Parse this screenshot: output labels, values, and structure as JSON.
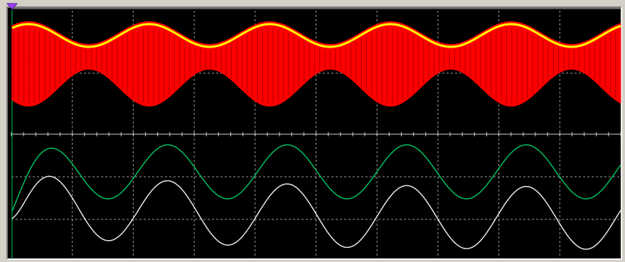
{
  "window": {
    "background": "#d4d0c8",
    "screen_background": "#000000"
  },
  "trigger_marker": {
    "icon": "trigger-marker-icon",
    "color": "#a040ff"
  },
  "chart_data": {
    "type": "line",
    "grid": true,
    "grid_style": "dashed",
    "grid_color": "#9a9a9a",
    "panels": [
      {
        "position": "top",
        "series": [
          {
            "color": "#ff0000",
            "style": "high-frequency carrier, amplitude-modulated",
            "envelope_peaks": 5,
            "carrier_cycles_per_envelope": 20
          },
          {
            "color": "#ffff00",
            "style": "envelope trace",
            "envelope_peaks": 5
          }
        ]
      },
      {
        "position": "bottom",
        "series": [
          {
            "color": "#00c060",
            "style": "sine with startup transient",
            "peaks": 5
          },
          {
            "color": "#e8e8e8",
            "style": "sine with decaying startup transient",
            "peaks": 5
          }
        ]
      }
    ]
  }
}
